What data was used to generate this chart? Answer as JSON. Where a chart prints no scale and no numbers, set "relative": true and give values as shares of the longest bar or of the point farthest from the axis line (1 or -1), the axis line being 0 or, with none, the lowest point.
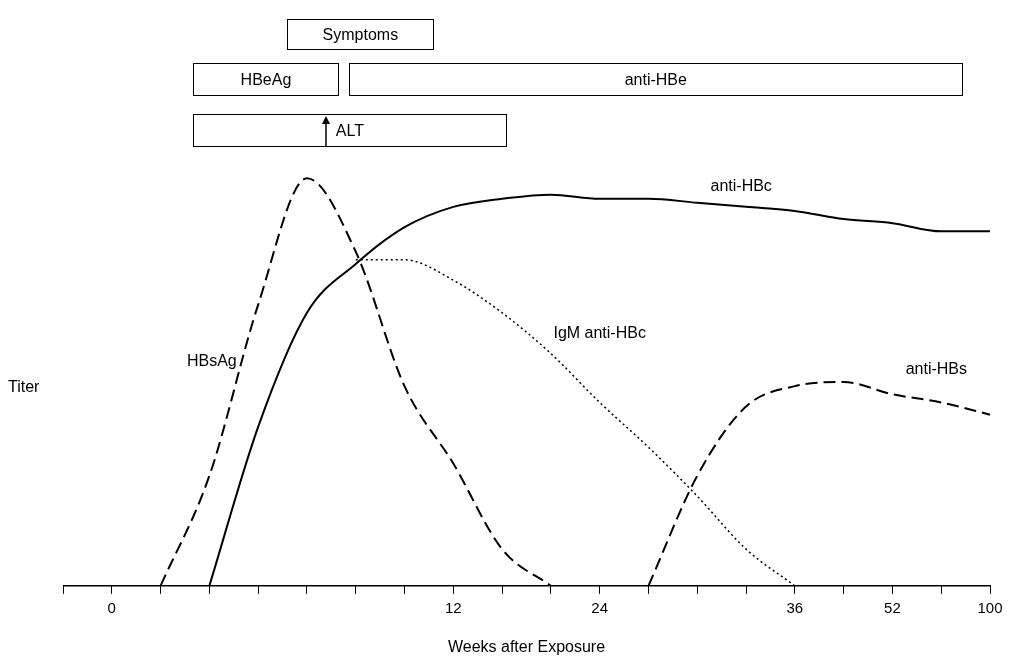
{
  "chart_data": {
    "type": "line",
    "relative": true,
    "xlabel": "Weeks after Exposure",
    "ylabel": "Titer",
    "categories": [
      null,
      "0",
      null,
      null,
      null,
      null,
      null,
      null,
      "12",
      null,
      null,
      "24",
      null,
      null,
      null,
      "36",
      null,
      "52",
      null,
      "100"
    ],
    "series": [
      {
        "name": "HBsAg",
        "color": "#000000",
        "line_style": "dashed",
        "values": [
          null,
          null,
          0,
          0.27,
          0.69,
          1.0,
          0.82,
          0.49,
          0.3,
          0.09,
          0,
          null,
          null,
          null,
          null,
          null,
          null,
          null,
          null,
          null
        ]
      },
      {
        "name": "anti-HBc",
        "color": "#000000",
        "line_style": "solid",
        "values": [
          null,
          null,
          null,
          0,
          0.39,
          0.67,
          0.79,
          0.88,
          0.93,
          0.95,
          0.96,
          0.95,
          0.95,
          0.94,
          0.93,
          0.92,
          0.9,
          0.89,
          0.87,
          0.87
        ]
      },
      {
        "name": "IgM anti-HBc",
        "color": "#000000",
        "line_style": "dotted",
        "values": [
          null,
          null,
          null,
          null,
          null,
          null,
          0.8,
          0.8,
          0.75,
          0.67,
          0.57,
          0.45,
          0.34,
          0.22,
          0.09,
          0,
          null,
          null,
          null,
          null
        ]
      },
      {
        "name": "anti-HBs",
        "color": "#000000",
        "line_style": "dashed",
        "values": [
          null,
          null,
          null,
          null,
          null,
          null,
          null,
          null,
          null,
          null,
          null,
          null,
          0,
          0.27,
          0.44,
          0.49,
          0.5,
          0.47,
          0.45,
          0.42
        ]
      }
    ],
    "annotations": [
      "Symptoms",
      "HBeAg",
      "anti-HBe",
      "ALT"
    ],
    "legend": false,
    "grid": false
  }
}
